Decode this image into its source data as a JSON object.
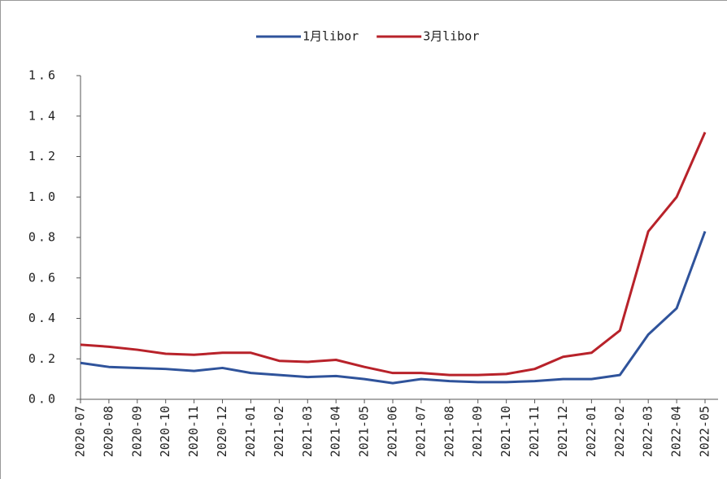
{
  "chart_data": {
    "type": "line",
    "categories": [
      "2020-07",
      "2020-08",
      "2020-09",
      "2020-10",
      "2020-11",
      "2020-12",
      "2021-01",
      "2021-02",
      "2021-03",
      "2021-04",
      "2021-05",
      "2021-06",
      "2021-07",
      "2021-08",
      "2021-09",
      "2021-10",
      "2021-11",
      "2021-12",
      "2022-01",
      "2022-02",
      "2022-03",
      "2022-04",
      "2022-05"
    ],
    "series": [
      {
        "name": "1月libor",
        "color": "#2f539b",
        "values": [
          0.18,
          0.16,
          0.155,
          0.15,
          0.14,
          0.155,
          0.13,
          0.12,
          0.11,
          0.115,
          0.1,
          0.08,
          0.1,
          0.09,
          0.085,
          0.085,
          0.09,
          0.1,
          0.1,
          0.12,
          0.32,
          0.45,
          0.83
        ]
      },
      {
        "name": "3月libor",
        "color": "#b8222a",
        "values": [
          0.27,
          0.26,
          0.245,
          0.225,
          0.22,
          0.23,
          0.23,
          0.19,
          0.185,
          0.195,
          0.16,
          0.13,
          0.13,
          0.12,
          0.12,
          0.125,
          0.15,
          0.21,
          0.23,
          0.34,
          0.83,
          1.0,
          1.32
        ]
      }
    ],
    "ylim": [
      0,
      1.6
    ],
    "yticks": [
      {
        "value": 0,
        "label": "0.0"
      },
      0.2,
      0.4,
      0.6,
      0.8,
      {
        "value": 1,
        "label": "1.0"
      },
      1.2,
      1.4,
      1.6
    ],
    "legend": "top"
  }
}
